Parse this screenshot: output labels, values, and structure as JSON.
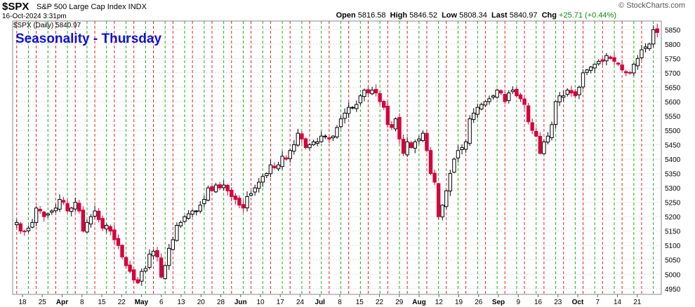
{
  "header": {
    "symbol": "$SPX",
    "description": "S&P 500 Large Cap Index INDX",
    "date": "16-Oct-2024 3:31pm",
    "open_label": "Open",
    "open": "5816.58",
    "high_label": "High",
    "high": "5846.52",
    "low_label": "Low",
    "low": "5808.34",
    "last_label": "Last",
    "last": "5840.97",
    "chg_label": "Chg",
    "chg": "+25.71 (+0.44%)",
    "logo": "© StockCharts.com"
  },
  "legend": "$SPX (Daily) 5840.97",
  "colors": {
    "up": "#000000",
    "down": "#d6003a",
    "green_line": "#22aa22",
    "red_line": "#dd2222",
    "title": "#1010e0"
  },
  "chart_data": {
    "type": "candlestick",
    "title": "Seasonality - Thursday",
    "ylim": [
      4930,
      5880
    ],
    "y_ticks": [
      4950,
      5000,
      5050,
      5100,
      5150,
      5200,
      5250,
      5300,
      5350,
      5400,
      5450,
      5500,
      5550,
      5600,
      5650,
      5700,
      5750,
      5800,
      5850
    ],
    "x_tick_labels": [
      "18",
      "25",
      "Apr",
      "8",
      "15",
      "22",
      "May",
      "6",
      "13",
      "20",
      "28",
      "Jun",
      "10",
      "17",
      "24",
      "Jul",
      "8",
      "15",
      "22",
      "29",
      "Aug",
      "12",
      "19",
      "26",
      "Sep",
      "9",
      "16",
      "23",
      "Oct",
      "7",
      "14",
      "21"
    ],
    "grid": true,
    "series": [
      {
        "name": "$SPX (Daily)",
        "closes": [
          5180,
          5150,
          5150,
          5160,
          5180,
          5230,
          5220,
          5200,
          5210,
          5220,
          5230,
          5260,
          5250,
          5220,
          5230,
          5250,
          5220,
          5150,
          5180,
          5200,
          5220,
          5190,
          5160,
          5170,
          5150,
          5120,
          5100,
          5060,
          5030,
          5010,
          4980,
          4970,
          5010,
          5020,
          5070,
          5080,
          5060,
          4990,
          5030,
          5090,
          5120,
          5170,
          5180,
          5200,
          5210,
          5220,
          5220,
          5240,
          5260,
          5300,
          5290,
          5310,
          5300,
          5310,
          5290,
          5270,
          5260,
          5240,
          5230,
          5270,
          5280,
          5300,
          5320,
          5340,
          5350,
          5380,
          5370,
          5380,
          5410,
          5400,
          5430,
          5450,
          5490,
          5470,
          5440,
          5450,
          5460,
          5460,
          5480,
          5480,
          5470,
          5480,
          5510,
          5540,
          5560,
          5580,
          5580,
          5590,
          5620,
          5640,
          5630,
          5640,
          5630,
          5600,
          5580,
          5520,
          5510,
          5540,
          5470,
          5420,
          5460,
          5440,
          5460,
          5470,
          5490,
          5430,
          5350,
          5320,
          5200,
          5240,
          5290,
          5350,
          5400,
          5430,
          5440,
          5460,
          5540,
          5560,
          5580,
          5590,
          5600,
          5610,
          5620,
          5640,
          5630,
          5600,
          5630,
          5640,
          5620,
          5610,
          5590,
          5530,
          5500,
          5480,
          5420,
          5460,
          5480,
          5520,
          5600,
          5620,
          5620,
          5640,
          5630,
          5620,
          5650,
          5700,
          5710,
          5720,
          5730,
          5740,
          5740,
          5760,
          5750,
          5740,
          5730,
          5710,
          5700,
          5700,
          5730,
          5750,
          5780,
          5790,
          5800,
          5850,
          5840
        ]
      }
    ],
    "vertical_markers": {
      "green_thursdays": true,
      "red_mondays": true
    }
  }
}
